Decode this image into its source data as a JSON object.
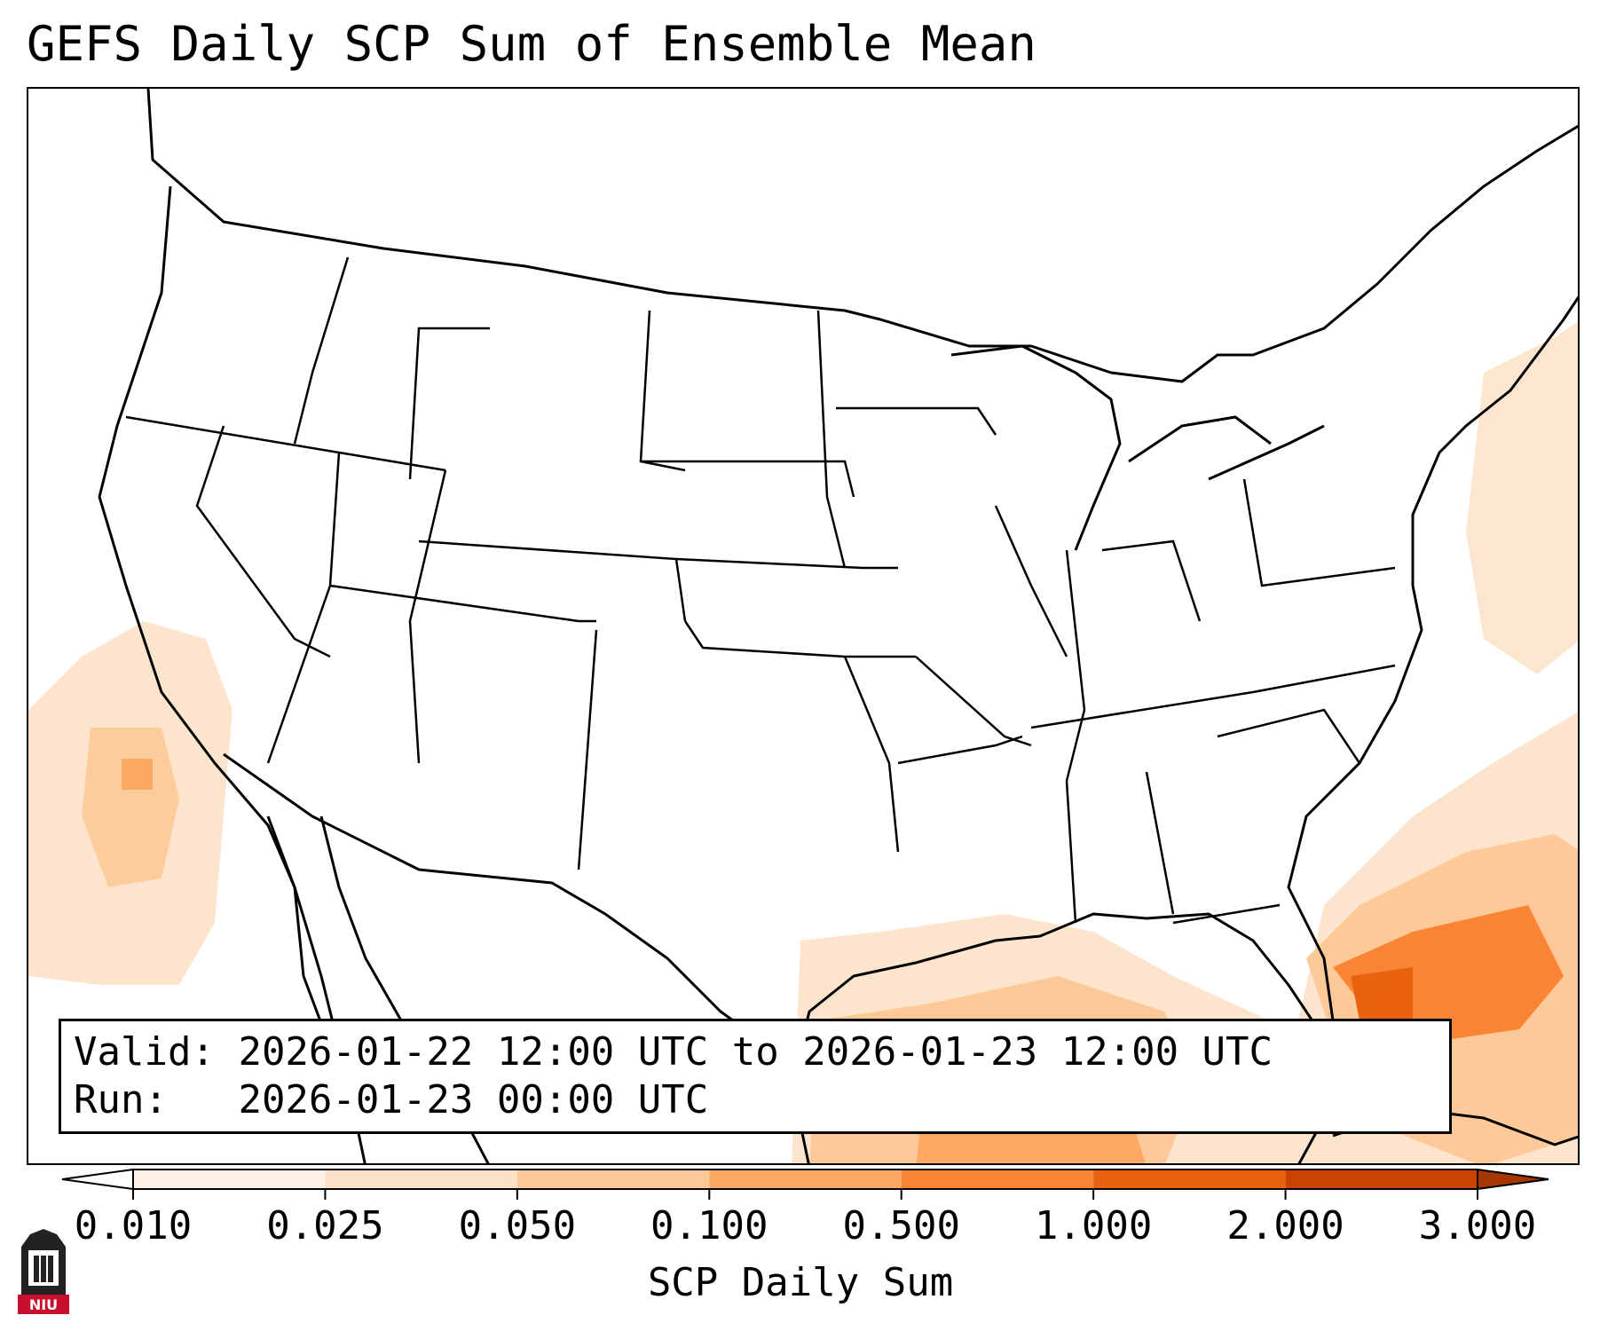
{
  "title": "GEFS Daily SCP Sum of Ensemble Mean",
  "info": {
    "valid_label": "Valid:",
    "valid_value": "2026-01-22 12:00 UTC to 2026-01-23 12:00 UTC",
    "run_label": "Run:",
    "run_value": "2026-01-23 00:00 UTC"
  },
  "colorbar": {
    "label": "SCP Daily Sum",
    "ticks": [
      "0.010",
      "0.025",
      "0.050",
      "0.100",
      "0.500",
      "1.000",
      "2.000",
      "3.000"
    ],
    "colors": [
      "#fff1e6",
      "#fde2c8",
      "#fdc998",
      "#fda863",
      "#f98434",
      "#e8620f",
      "#c84304"
    ],
    "extend": "both"
  },
  "logo": {
    "text": "NIU",
    "color": "#c8102e",
    "icon": "niu-castle-logo-icon"
  },
  "map": {
    "projection": "Lambert Conformal",
    "region": "CONUS",
    "field": "SCP daily sum"
  }
}
